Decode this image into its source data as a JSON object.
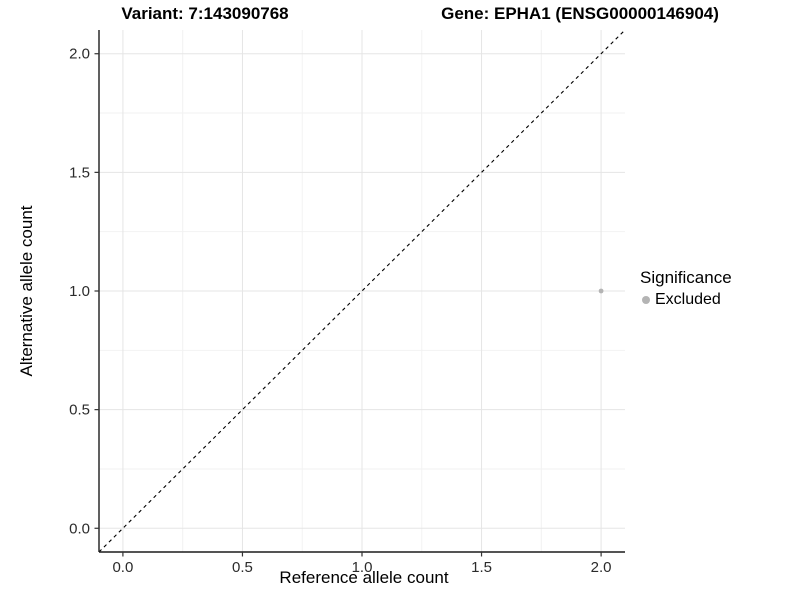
{
  "titles": {
    "variant": "Variant: 7:143090768",
    "gene": "Gene: EPHA1 (ENSG00000146904)"
  },
  "chart_data": {
    "type": "scatter",
    "title_left": "Variant: 7:143090768",
    "title_right": "Gene: EPHA1 (ENSG00000146904)",
    "xlabel": "Reference allele count",
    "ylabel": "Alternative allele count",
    "xlim": [
      -0.1,
      2.1
    ],
    "ylim": [
      -0.1,
      2.1
    ],
    "xticks": [
      0.0,
      0.5,
      1.0,
      1.5,
      2.0
    ],
    "yticks": [
      0.0,
      0.5,
      1.0,
      1.5,
      2.0
    ],
    "xtick_labels": [
      "0.0",
      "0.5",
      "1.0",
      "1.5",
      "2.0"
    ],
    "ytick_labels": [
      "0.0",
      "0.5",
      "1.0",
      "1.5",
      "2.0"
    ],
    "xminor": [
      0.25,
      0.75,
      1.25,
      1.75
    ],
    "yminor": [
      0.25,
      0.75,
      1.25,
      1.75
    ],
    "grid": true,
    "legend_position": "right",
    "series": [
      {
        "name": "Excluded",
        "color": "#b4b4b4",
        "radius": 2.4,
        "points": [
          {
            "x": 2.0,
            "y": 1.0
          }
        ]
      }
    ],
    "reference_line": {
      "type": "identity y=x",
      "style": "dashed",
      "from": -0.1,
      "to": 2.1,
      "color": "#000000",
      "dash": "3.5 3.5"
    },
    "legend": {
      "title": "Significance",
      "items": [
        {
          "label": "Excluded",
          "color": "#b4b4b4"
        }
      ]
    }
  }
}
